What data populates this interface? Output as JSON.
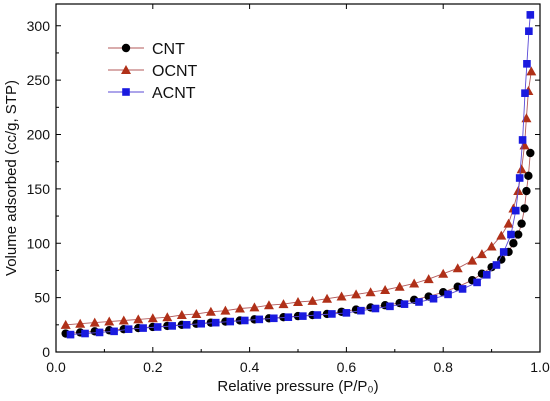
{
  "chart_data": {
    "type": "scatter",
    "xlabel": "Relative pressure (P/P₀)",
    "ylabel": "Volume adsorbed (cc/g, STP)",
    "xlim": [
      0.0,
      1.0
    ],
    "ylim": [
      0,
      320
    ],
    "xticks": [
      0.0,
      0.2,
      0.4,
      0.6,
      0.8,
      1.0
    ],
    "xtick_labels": [
      "0.0",
      "0.2",
      "0.4",
      "0.6",
      "0.8",
      "1.0"
    ],
    "yticks": [
      0,
      50,
      100,
      150,
      200,
      250,
      300
    ],
    "ytick_labels": [
      "0",
      "50",
      "100",
      "150",
      "200",
      "250",
      "300"
    ],
    "grid": false,
    "legend_position": "top-left",
    "series": [
      {
        "name": "CNT",
        "color": "#000000",
        "line_color": "#b35a5a",
        "marker": "circle",
        "x": [
          0.02,
          0.05,
          0.08,
          0.11,
          0.14,
          0.17,
          0.2,
          0.23,
          0.26,
          0.29,
          0.32,
          0.35,
          0.38,
          0.41,
          0.44,
          0.47,
          0.5,
          0.53,
          0.56,
          0.59,
          0.62,
          0.65,
          0.68,
          0.71,
          0.74,
          0.77,
          0.8,
          0.83,
          0.86,
          0.88,
          0.9,
          0.92,
          0.935,
          0.945,
          0.955,
          0.962,
          0.968,
          0.972,
          0.976,
          0.98
        ],
        "y": [
          17,
          18,
          19,
          20,
          21,
          22,
          23,
          24,
          25,
          26,
          27,
          28,
          29,
          30,
          31,
          32,
          33,
          34,
          35,
          37,
          39,
          41,
          43,
          45,
          48,
          51,
          55,
          60,
          66,
          72,
          78,
          85,
          92,
          100,
          108,
          118,
          132,
          148,
          162,
          183
        ]
      },
      {
        "name": "OCNT",
        "color": "#b03018",
        "line_color": "#b35a5a",
        "marker": "triangle",
        "x": [
          0.02,
          0.05,
          0.08,
          0.11,
          0.14,
          0.17,
          0.2,
          0.23,
          0.26,
          0.29,
          0.32,
          0.35,
          0.38,
          0.41,
          0.44,
          0.47,
          0.5,
          0.53,
          0.56,
          0.59,
          0.62,
          0.65,
          0.68,
          0.71,
          0.74,
          0.77,
          0.8,
          0.83,
          0.86,
          0.88,
          0.9,
          0.92,
          0.935,
          0.945,
          0.955,
          0.962,
          0.968,
          0.972,
          0.976,
          0.982
        ],
        "y": [
          25,
          26,
          27,
          28,
          29,
          30,
          31,
          32,
          34,
          35,
          37,
          38,
          40,
          41,
          43,
          44,
          46,
          47,
          49,
          51,
          53,
          55,
          57,
          60,
          63,
          67,
          72,
          77,
          84,
          90,
          97,
          107,
          118,
          132,
          148,
          168,
          190,
          215,
          240,
          258
        ]
      },
      {
        "name": "ACNT",
        "color": "#1a1adf",
        "line_color": "#5a4ad6",
        "marker": "square",
        "x": [
          0.03,
          0.06,
          0.09,
          0.12,
          0.15,
          0.18,
          0.21,
          0.24,
          0.27,
          0.3,
          0.33,
          0.36,
          0.39,
          0.42,
          0.45,
          0.48,
          0.51,
          0.54,
          0.57,
          0.6,
          0.63,
          0.66,
          0.69,
          0.72,
          0.75,
          0.78,
          0.81,
          0.84,
          0.87,
          0.89,
          0.91,
          0.925,
          0.94,
          0.95,
          0.958,
          0.964,
          0.969,
          0.973,
          0.977,
          0.98
        ],
        "y": [
          16,
          17,
          18,
          19,
          21,
          22,
          23,
          24,
          25,
          26,
          27,
          28,
          29,
          30,
          31,
          32,
          33,
          34,
          35,
          36,
          38,
          40,
          42,
          44,
          46,
          49,
          53,
          58,
          64,
          71,
          80,
          92,
          108,
          130,
          160,
          195,
          238,
          265,
          295,
          310
        ]
      }
    ]
  }
}
